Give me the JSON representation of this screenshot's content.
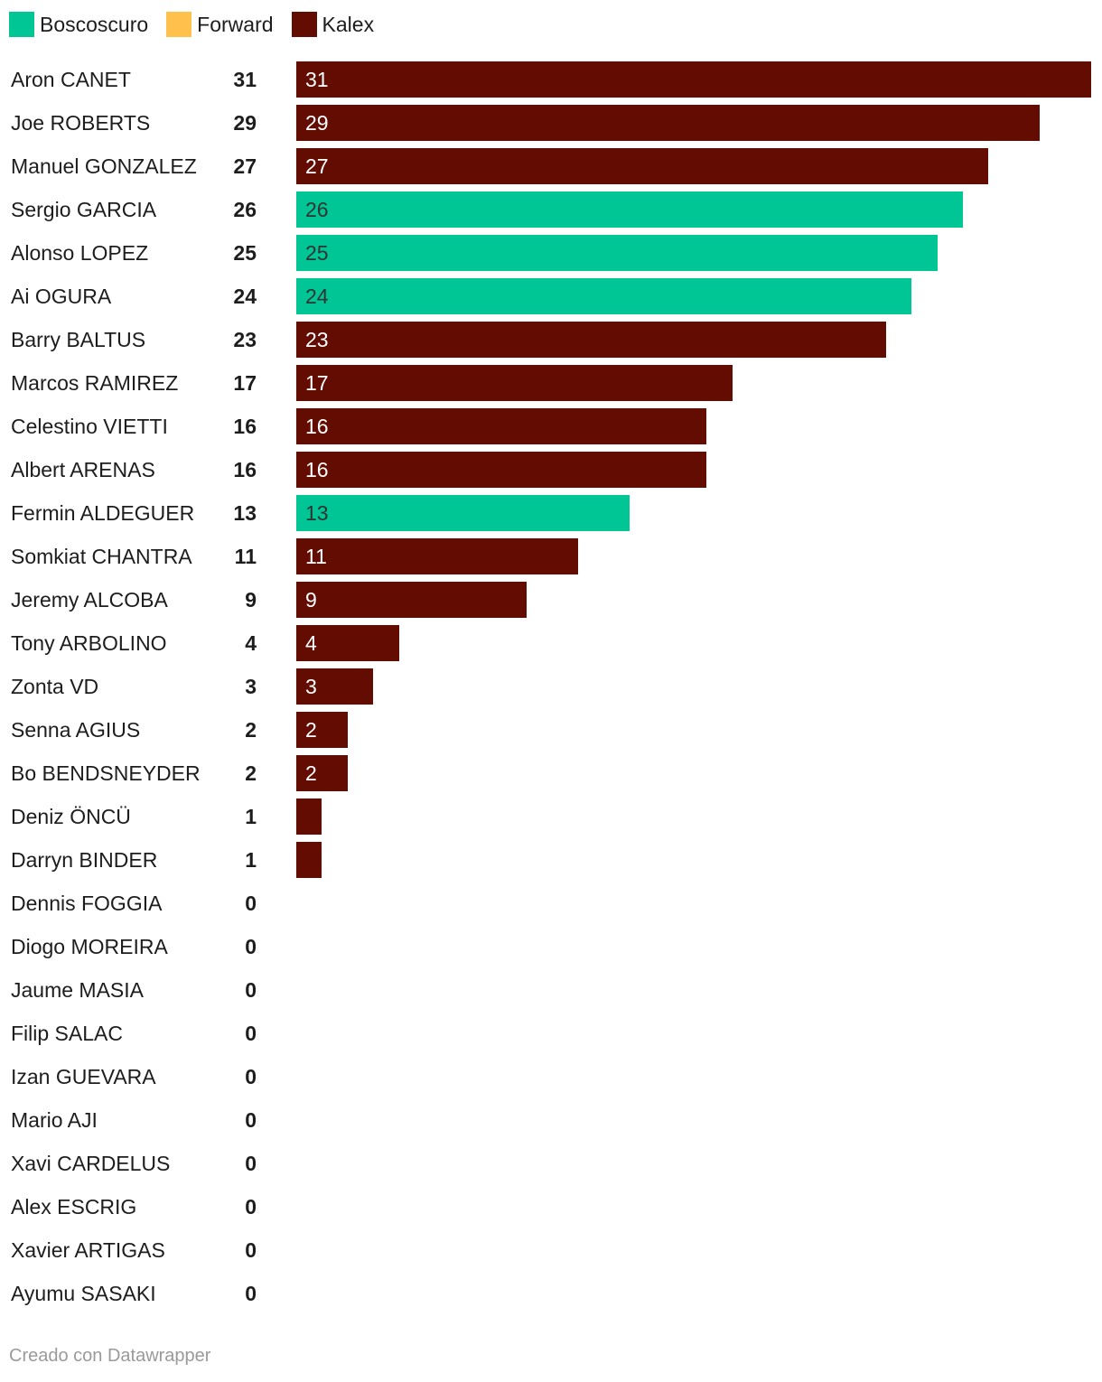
{
  "legend": [
    {
      "name": "Boscoscuro",
      "color": "#00c595"
    },
    {
      "name": "Forward",
      "color": "#ffc04c"
    },
    {
      "name": "Kalex",
      "color": "#620c02"
    }
  ],
  "chart_data": {
    "type": "bar",
    "orientation": "horizontal",
    "title": "",
    "xlabel": "",
    "ylabel": "",
    "xlim": [
      0,
      31
    ],
    "grid": false,
    "legend_position": "top-left",
    "categories": [
      "Aron CANET",
      "Joe ROBERTS",
      "Manuel GONZALEZ",
      "Sergio GARCIA",
      "Alonso LOPEZ",
      "Ai OGURA",
      "Barry BALTUS",
      "Marcos RAMIREZ",
      "Celestino VIETTI",
      "Albert ARENAS",
      "Fermin ALDEGUER",
      "Somkiat CHANTRA",
      "Jeremy ALCOBA",
      "Tony ARBOLINO",
      "Zonta VD",
      "Senna AGIUS",
      "Bo BENDSNEYDER",
      "Deniz ÖNCÜ",
      "Darryn BINDER",
      "Dennis FOGGIA",
      "Diogo MOREIRA",
      "Jaume MASIA",
      "Filip SALAC",
      "Izan GUEVARA",
      "Mario AJI",
      "Xavi CARDELUS",
      "Alex ESCRIG",
      "Xavier ARTIGAS",
      "Ayumu SASAKI"
    ],
    "series": [
      {
        "name": "Boscoscuro",
        "color": "#00c595",
        "values": [
          0,
          0,
          0,
          26,
          25,
          24,
          0,
          0,
          0,
          0,
          13,
          0,
          0,
          0,
          0,
          0,
          0,
          0,
          0,
          0,
          0,
          0,
          0,
          0,
          0,
          0,
          0,
          0,
          0
        ]
      },
      {
        "name": "Forward",
        "color": "#ffc04c",
        "values": [
          0,
          0,
          0,
          0,
          0,
          0,
          0,
          0,
          0,
          0,
          0,
          0,
          0,
          0,
          0,
          0,
          0,
          0,
          0,
          0,
          0,
          0,
          0,
          0,
          0,
          0,
          0,
          0,
          0
        ]
      },
      {
        "name": "Kalex",
        "color": "#620c02",
        "values": [
          31,
          29,
          27,
          0,
          0,
          0,
          23,
          17,
          16,
          16,
          0,
          11,
          9,
          4,
          3,
          2,
          2,
          1,
          1,
          0,
          0,
          0,
          0,
          0,
          0,
          0,
          0,
          0,
          0
        ]
      }
    ],
    "totals": [
      31,
      29,
      27,
      26,
      25,
      24,
      23,
      17,
      16,
      16,
      13,
      11,
      9,
      4,
      3,
      2,
      2,
      1,
      1,
      0,
      0,
      0,
      0,
      0,
      0,
      0,
      0,
      0,
      0
    ],
    "bar_labels": [
      "31",
      "29",
      "27",
      "26",
      "25",
      "24",
      "23",
      "17",
      "16",
      "16",
      "13",
      "11",
      "9",
      "4",
      "3",
      "2",
      "2",
      "",
      "",
      "",
      "",
      "",
      "",
      "",
      "",
      "",
      "",
      "",
      ""
    ],
    "bar_label_colors": [
      "#ffffff",
      "#ffffff",
      "#ffffff",
      "#333333",
      "#333333",
      "#333333",
      "#ffffff",
      "#ffffff",
      "#ffffff",
      "#ffffff",
      "#333333",
      "#ffffff",
      "#ffffff",
      "#ffffff",
      "#ffffff",
      "#ffffff",
      "#ffffff",
      "#ffffff",
      "#ffffff",
      "#ffffff",
      "#ffffff",
      "#ffffff",
      "#ffffff",
      "#ffffff",
      "#ffffff",
      "#ffffff",
      "#ffffff",
      "#ffffff",
      "#ffffff"
    ]
  },
  "footer": {
    "credit": "Creado con Datawrapper"
  }
}
